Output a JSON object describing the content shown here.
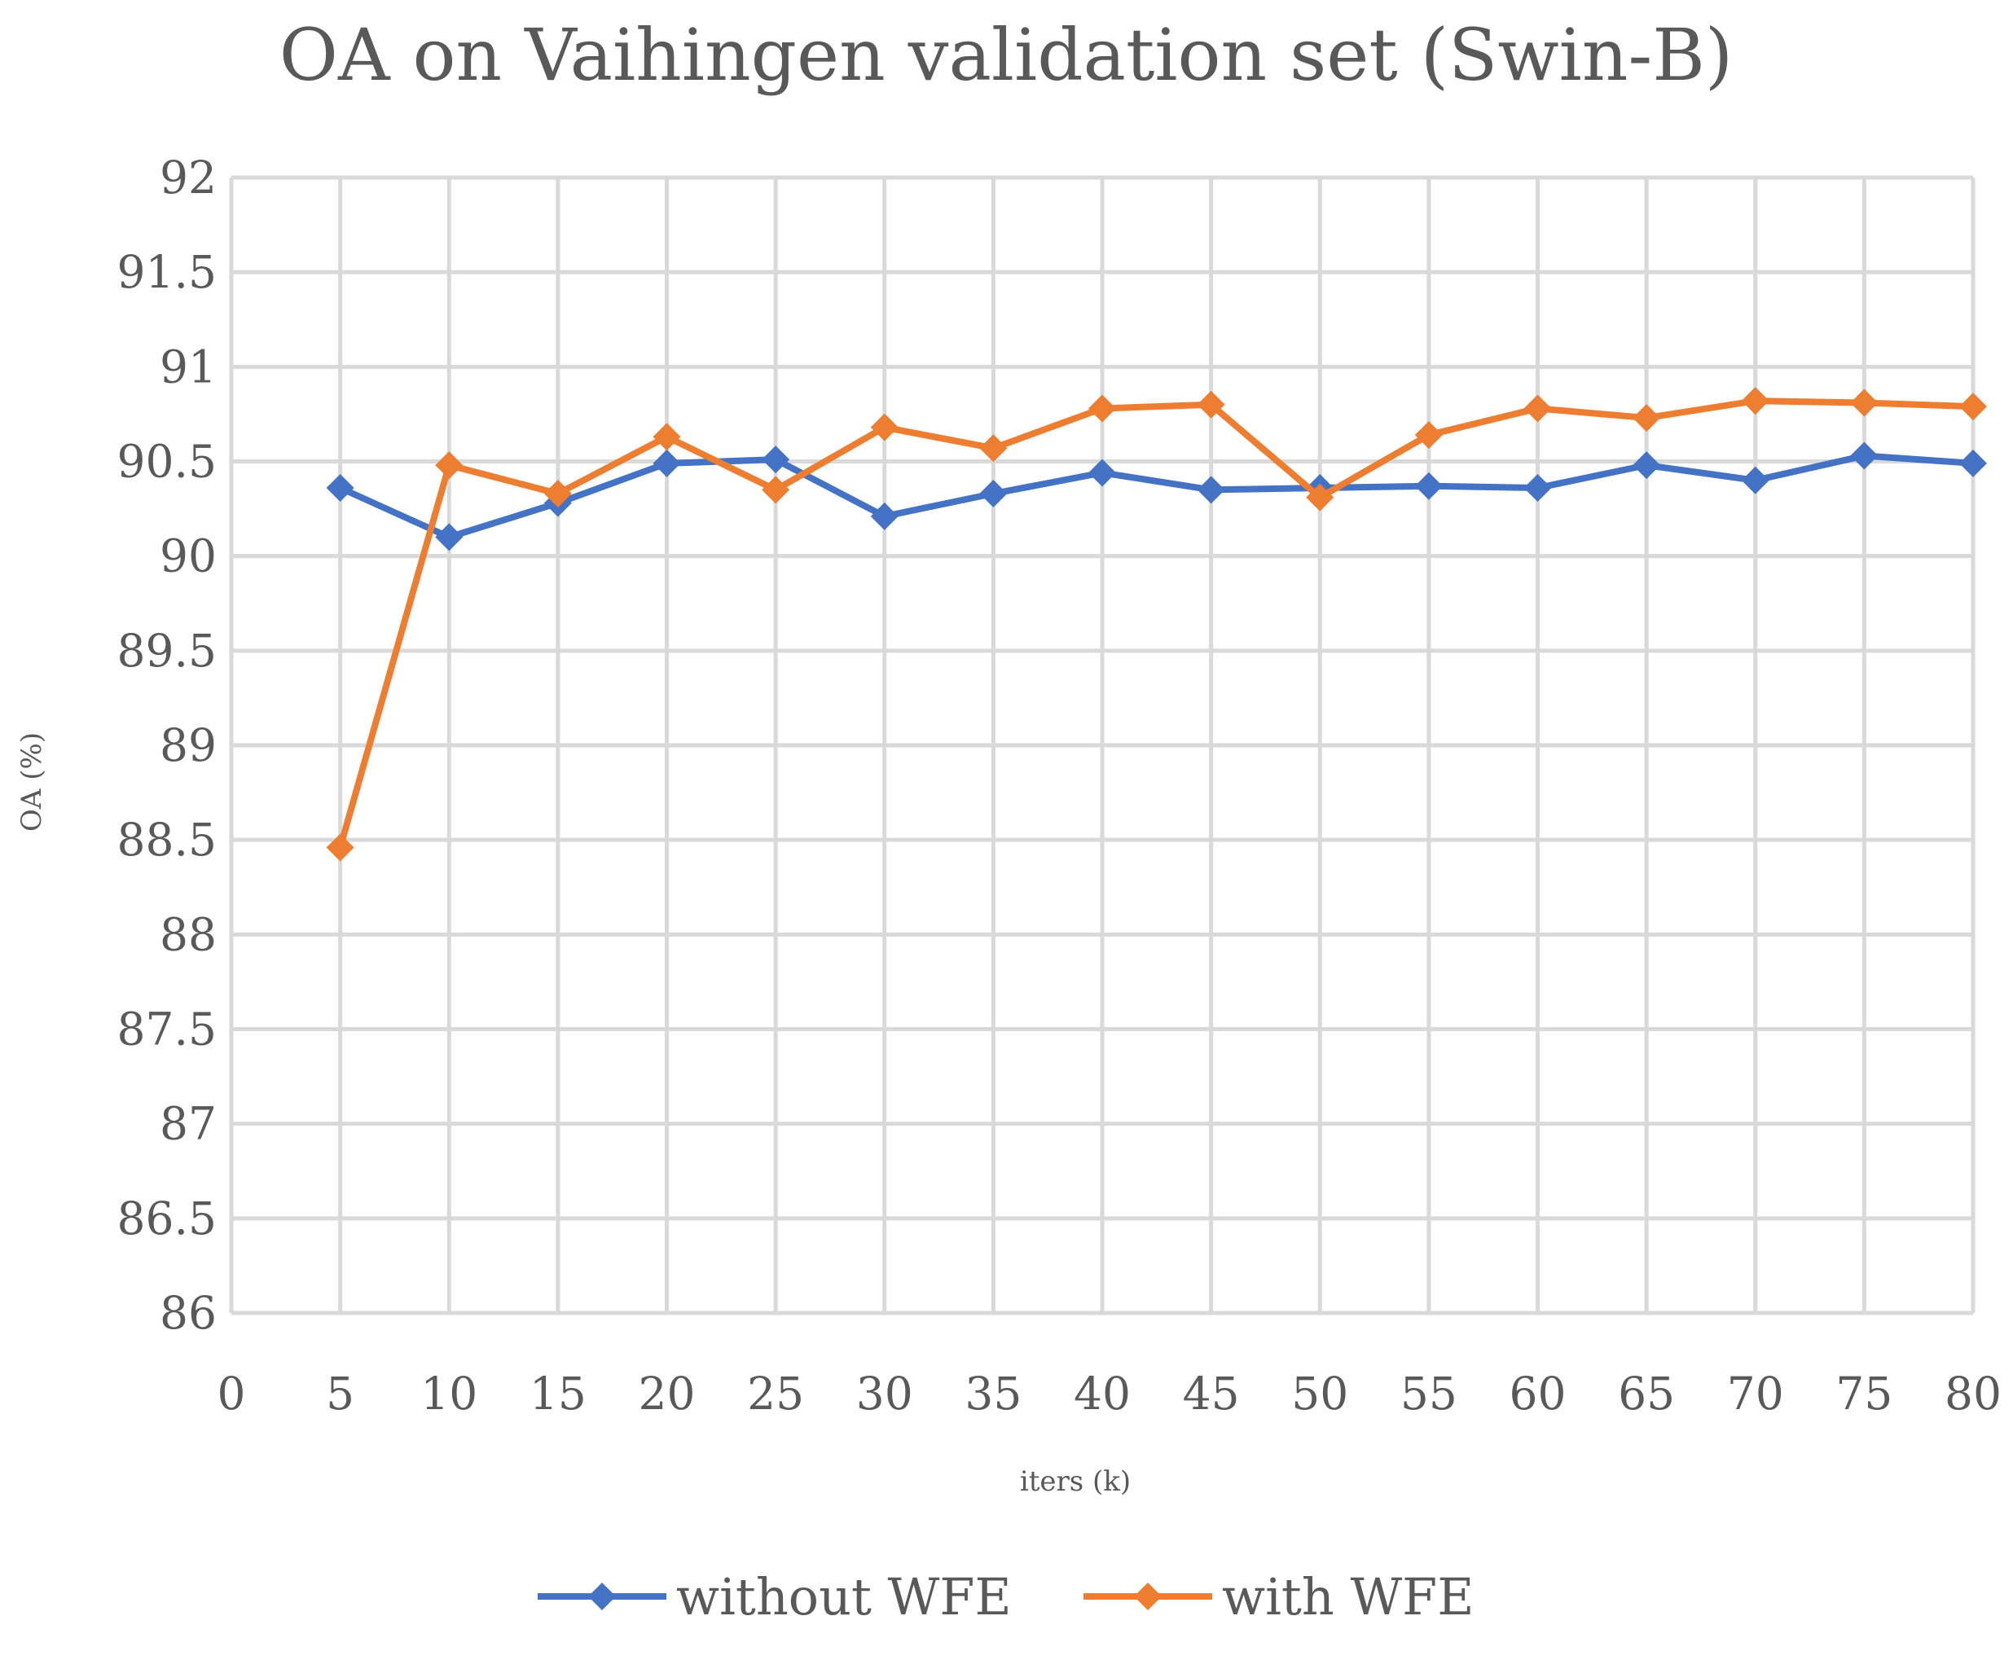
{
  "chart_data": {
    "type": "line",
    "title": "OA on Vaihingen validation set (Swin-B)",
    "xlabel": "iters (k)",
    "ylabel": "OA (%)",
    "x_ticks": [
      "0",
      "5",
      "10",
      "15",
      "20",
      "25",
      "30",
      "35",
      "40",
      "45",
      "50",
      "55",
      "60",
      "65",
      "70",
      "75",
      "80"
    ],
    "y_ticks": [
      "86",
      "86.5",
      "87",
      "87.5",
      "88",
      "88.5",
      "89",
      "89.5",
      "90",
      "90.5",
      "91",
      "91.5",
      "92"
    ],
    "xlim": [
      0,
      80
    ],
    "ylim": [
      86,
      92
    ],
    "grid": true,
    "legend_position": "bottom",
    "x": [
      5,
      10,
      15,
      20,
      25,
      30,
      35,
      40,
      45,
      50,
      55,
      60,
      65,
      70,
      75,
      80
    ],
    "series": [
      {
        "name": "without WFE",
        "color": "#4472c4",
        "marker": "diamond",
        "values": [
          90.36,
          90.1,
          90.28,
          90.49,
          90.51,
          90.21,
          90.33,
          90.44,
          90.35,
          90.36,
          90.37,
          90.36,
          90.48,
          90.4,
          90.53,
          90.49
        ]
      },
      {
        "name": "with WFE",
        "color": "#ed7d31",
        "marker": "diamond",
        "values": [
          88.46,
          90.48,
          90.33,
          90.63,
          90.35,
          90.68,
          90.57,
          90.78,
          90.8,
          90.31,
          90.64,
          90.78,
          90.73,
          90.82,
          90.81,
          90.79
        ]
      }
    ]
  }
}
